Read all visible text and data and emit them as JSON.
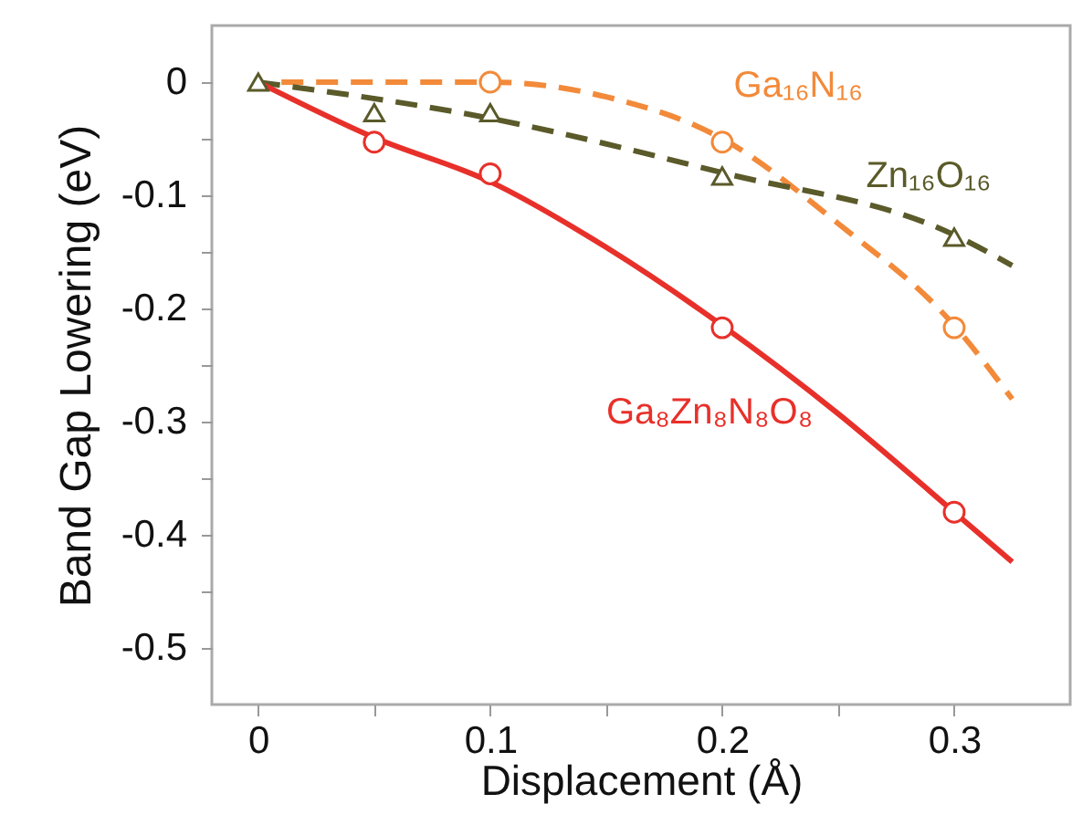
{
  "chart_data": {
    "type": "line",
    "xlabel": "Displacement (Å)",
    "ylabel": "Band Gap Lowering (eV)",
    "xlim": [
      -0.02,
      0.35
    ],
    "ylim": [
      -0.55,
      0.05
    ],
    "xticks": [
      0,
      {
        "value": 0.05,
        "label": null
      },
      0.1,
      {
        "value": 0.15,
        "label": null
      },
      0.2,
      {
        "value": 0.25,
        "label": null
      },
      0.3
    ],
    "yticks": [
      0,
      {
        "value": -0.05,
        "label": null
      },
      -0.1,
      {
        "value": -0.15,
        "label": null
      },
      -0.2,
      {
        "value": -0.25,
        "label": null
      },
      -0.3,
      {
        "value": -0.35,
        "label": null
      },
      -0.4,
      {
        "value": -0.45,
        "label": null
      },
      -0.5
    ],
    "grid": false,
    "series": [
      {
        "type": "line",
        "name": "Ga₁₆N₁₆",
        "color": "#f28a3a",
        "line_style": "dashed",
        "x": [
          0.01,
          0.05,
          0.1,
          0.15,
          0.2,
          0.25,
          0.3,
          0.325
        ],
        "values": [
          0,
          0,
          0,
          -0.013,
          -0.05,
          -0.125,
          -0.215,
          -0.28
        ]
      },
      {
        "type": "line",
        "name": "Zn₁₆O₁₆",
        "color": "#5a5a2a",
        "line_style": "dashed",
        "x": [
          0,
          0.1,
          0.2,
          0.3,
          0.325
        ],
        "values": [
          0,
          -0.032,
          -0.08,
          -0.135,
          -0.162
        ]
      },
      {
        "type": "line",
        "name": "Ga₈Zn₈N₈O₈",
        "color": "#e8302a",
        "line_style": "solid",
        "x": [
          0,
          0.05,
          0.1,
          0.15,
          0.2,
          0.25,
          0.3,
          0.325
        ],
        "values": [
          0,
          -0.049,
          -0.088,
          -0.146,
          -0.215,
          -0.293,
          -0.38,
          -0.424
        ]
      },
      {
        "type": "scatter",
        "color": "#f28a3a",
        "marker": "circle",
        "x": [
          0.1,
          0.2,
          0.3
        ],
        "values": [
          0,
          -0.053,
          -0.217
        ]
      },
      {
        "type": "scatter",
        "color": "#5a5a2a",
        "marker": "triangle",
        "x": [
          0,
          0.05,
          0.1,
          0.2,
          0.3
        ],
        "values": [
          0,
          -0.027,
          -0.027,
          -0.083,
          -0.137
        ]
      },
      {
        "type": "scatter",
        "color": "#e8302a",
        "marker": "circle",
        "x": [
          0.05,
          0.1,
          0.2,
          0.3
        ],
        "values": [
          -0.053,
          -0.081,
          -0.217,
          -0.38
        ]
      }
    ]
  }
}
